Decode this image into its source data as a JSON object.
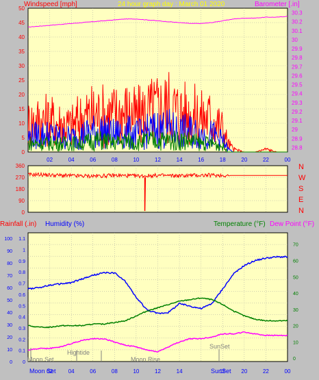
{
  "colors": {
    "background": "#c0c0c0",
    "plot_bg": "#ffffc0",
    "wind": "#ff0000",
    "gust_mid": "#0000ff",
    "wind_low": "#008000",
    "barometer": "#ff00ff",
    "title": "#ffff00",
    "rain": "#ff0000",
    "humidity": "#0000ff",
    "temperature": "#008000",
    "dew_point": "#ff00ff"
  },
  "chart_data": [
    {
      "type": "line",
      "panel": "wind-barometer",
      "title": "24 hour graph day : March 01 2020",
      "ylabel_left": "Windspeed [mph]",
      "ylabel_right": "Barometer [.in]",
      "x_ticks": [
        "02",
        "04",
        "06",
        "08",
        "10",
        "12",
        "14",
        "16",
        "18",
        "20",
        "22",
        "00"
      ],
      "ylim_left": [
        0,
        50
      ],
      "yticks_left": [
        "0",
        "5",
        "10",
        "15",
        "20",
        "25",
        "30",
        "35",
        "40",
        "45",
        "50"
      ],
      "ylim_right": [
        28.75,
        30.35
      ],
      "yticks_right": [
        "28.8",
        "28.9",
        "29",
        "29.1",
        "29.2",
        "29.3",
        "29.4",
        "29.5",
        "29.6",
        "29.7",
        "29.8",
        "29.9",
        "30",
        "30.1",
        "30.2",
        "30.3"
      ],
      "x_hours": [
        0,
        1,
        2,
        3,
        4,
        5,
        6,
        7,
        8,
        9,
        10,
        11,
        12,
        13,
        14,
        15,
        16,
        17,
        18,
        18.5,
        19,
        20,
        21,
        22,
        23,
        24
      ],
      "series": [
        {
          "color": "#ff00ff",
          "values": [
            30.14,
            30.15,
            30.16,
            30.17,
            30.18,
            30.19,
            30.2,
            30.21,
            30.22,
            30.23,
            30.23,
            30.22,
            30.21,
            30.2,
            30.19,
            30.18,
            30.18,
            30.19,
            30.21,
            30.22,
            30.23,
            30.24,
            30.24,
            30.25,
            30.25,
            30.26
          ]
        },
        {
          "color": "#ff0000",
          "values": [
            10,
            11,
            11,
            10,
            9,
            12,
            13,
            13,
            13,
            14,
            12,
            14,
            15,
            16,
            14,
            13,
            12,
            12,
            8,
            3,
            1,
            0,
            0,
            1,
            0,
            0
          ]
        },
        {
          "color": "#0000ff",
          "values": [
            5,
            6,
            6,
            5,
            5,
            6,
            7,
            7,
            6,
            7,
            6,
            7,
            8,
            8,
            7,
            7,
            6,
            6,
            4,
            1,
            0,
            0,
            0,
            0,
            0,
            0
          ]
        },
        {
          "color": "#008000",
          "values": [
            3,
            3,
            3,
            3,
            3,
            3,
            4,
            4,
            3,
            4,
            3,
            4,
            4,
            4,
            4,
            4,
            3,
            3,
            2,
            0,
            0,
            0,
            0,
            0,
            0,
            0
          ]
        }
      ]
    },
    {
      "type": "line",
      "panel": "wind-direction",
      "x_ticks": [],
      "ylim": [
        0,
        360
      ],
      "yticks": [
        "0",
        "90",
        "180",
        "270",
        "360"
      ],
      "right_labels": [
        "N",
        "W",
        "S",
        "E",
        "N"
      ],
      "x_hours": [
        0,
        1,
        2,
        3,
        4,
        5,
        6,
        7,
        8,
        9,
        10,
        11,
        12,
        13,
        14,
        15,
        16,
        17,
        18,
        19,
        20,
        21,
        22,
        23,
        24
      ],
      "series": [
        {
          "color": "#ff0000",
          "values": [
            290,
            292,
            288,
            285,
            282,
            280,
            280,
            282,
            285,
            283,
            280,
            282,
            285,
            283,
            282,
            285,
            286,
            287,
            285,
            285,
            285,
            285,
            285,
            285,
            285
          ]
        }
      ]
    },
    {
      "type": "line",
      "panel": "rain-humidity-temperature",
      "ylabel_left_1": "Rainfall (.in)",
      "ylabel_left_2": "Humidity (%)",
      "ylabel_right_1": "Temperature (°F)",
      "ylabel_right_2": "Dew Point (°F)",
      "yticks_humidity": [
        "0",
        "10",
        "20",
        "30",
        "40",
        "50",
        "60",
        "70",
        "80",
        "90",
        "100"
      ],
      "yticks_rain": [
        "0",
        "0.1",
        "0.2",
        "0.3",
        "0.4",
        "0.5",
        "0.6",
        "0.7",
        "0.8",
        "0.9",
        "1",
        "1.1"
      ],
      "yticks_temp": [
        "0",
        "10",
        "20",
        "30",
        "40",
        "50",
        "60",
        "70"
      ],
      "x_ticks": [
        "02",
        "04",
        "06",
        "08",
        "10",
        "12",
        "14",
        "16",
        "18",
        "20",
        "22",
        "00"
      ],
      "x_hours": [
        0,
        1,
        2,
        3,
        4,
        5,
        6,
        7,
        8,
        9,
        10,
        11,
        12,
        13,
        14,
        15,
        16,
        17,
        18,
        19,
        20,
        21,
        22,
        23,
        24
      ],
      "series": [
        {
          "color": "#0000ff",
          "axis": "humidity",
          "values": [
            59,
            60,
            62,
            63,
            64,
            67,
            70,
            72,
            72,
            65,
            52,
            42,
            39,
            40,
            47,
            45,
            43,
            47,
            59,
            71,
            78,
            82,
            84,
            85,
            85
          ]
        },
        {
          "color": "#008000",
          "axis": "temperature",
          "values": [
            20,
            19,
            19,
            20,
            20,
            20,
            21,
            21,
            22,
            23,
            26,
            29,
            31,
            33,
            35,
            36,
            37,
            36,
            33,
            29,
            26,
            24,
            23,
            23,
            23
          ]
        },
        {
          "color": "#ff00ff",
          "axis": "temperature",
          "values": [
            5,
            6,
            6,
            7,
            9,
            11,
            12,
            12,
            10,
            8,
            7,
            5,
            4,
            7,
            10,
            12,
            12,
            13,
            15,
            15,
            16,
            15,
            14,
            14,
            14
          ]
        }
      ]
    }
  ],
  "annotations": {
    "moon_set_top": "Moon Set",
    "hightide": "Hightide",
    "moon_rise": "Moon Rise",
    "sunset_top": "SunSet",
    "moon_set_bottom": "Moon Set",
    "sunset_bottom": "SunSet"
  }
}
